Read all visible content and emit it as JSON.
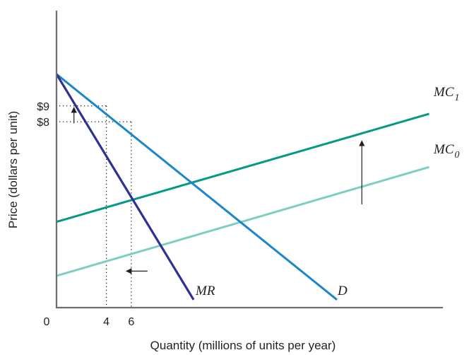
{
  "chart_data": {
    "type": "line",
    "title": "",
    "xlabel": "Quantity (millions of units per year)",
    "ylabel": "Price (dollars per unit)",
    "origin_label": "0",
    "x_ticks": [
      {
        "value": 4,
        "label": "4"
      },
      {
        "value": 6,
        "label": "6"
      }
    ],
    "y_ticks": [
      {
        "value": 9,
        "label": "$9"
      },
      {
        "value": 8,
        "label": "$8"
      }
    ],
    "xlim": [
      0,
      31
    ],
    "ylim": [
      -3.7,
      15
    ],
    "series": [
      {
        "name": "D",
        "label_main": "D",
        "label_sub": "",
        "color": "#1b87c9",
        "x": [
          0,
          22.5
        ],
        "y": [
          11,
          -3.2
        ]
      },
      {
        "name": "MR",
        "label_main": "MR",
        "label_sub": "",
        "color": "#2e3192",
        "x": [
          0,
          11
        ],
        "y": [
          11,
          -3.2
        ]
      },
      {
        "name": "MC1",
        "label_main": "MC",
        "label_sub": "1",
        "color": "#009a85",
        "x": [
          0,
          29.9
        ],
        "y": [
          1.7,
          8.5
        ]
      },
      {
        "name": "MC0",
        "label_main": "MC",
        "label_sub": "0",
        "color": "#7fcfc1",
        "x": [
          0,
          29.9
        ],
        "y": [
          -1.7,
          5.15
        ]
      }
    ],
    "reference_points": [
      {
        "x": 4,
        "y": 9
      },
      {
        "x": 6,
        "y": 8
      }
    ],
    "arrows": [
      {
        "from": [
          24.5,
          2.8
        ],
        "to": [
          24.5,
          6.8
        ],
        "meaning": "MC shifts up from MC0 to MC1"
      },
      {
        "from": [
          1.4,
          7.9
        ],
        "to": [
          1.4,
          8.9
        ],
        "meaning": "price rises from $8 to $9"
      },
      {
        "from": [
          7.3,
          -1.4
        ],
        "to": [
          5.6,
          -1.4
        ],
        "meaning": "quantity falls from 6 to 4"
      }
    ],
    "grid": false,
    "legend": "none"
  }
}
